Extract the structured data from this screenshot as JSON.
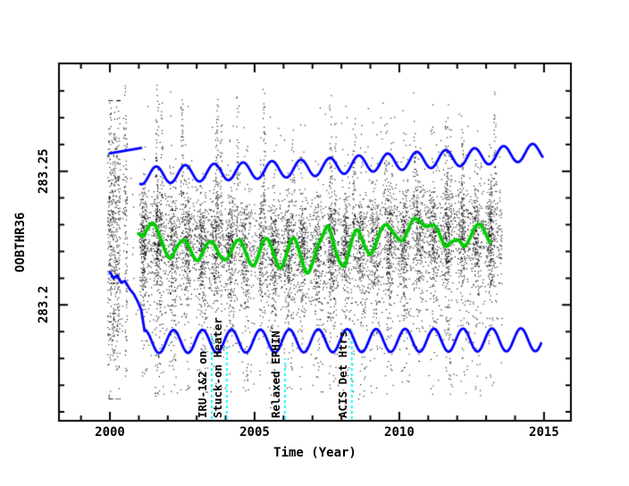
{
  "chart_data": {
    "type": "scatter",
    "title": "",
    "xlabel": "Time (Year)",
    "ylabel": "OOBTHR36",
    "x_range": [
      1998.24,
      2015.93
    ],
    "y_range": [
      283.1567,
      283.2903
    ],
    "grid": false,
    "x_axis": {
      "major_years": [
        2000,
        2005,
        2010,
        2015
      ],
      "major_labels": [
        "2000",
        "2005",
        "2010",
        "2015"
      ],
      "minor_step_years": 1
    },
    "y_axis": {
      "major_values": [
        283.25,
        283.2
      ],
      "major_labels": [
        "283.25",
        "283.2"
      ],
      "minor_step": 0.01
    },
    "colors": {
      "scatter": "#000000",
      "smooth": "#00cc00",
      "envelope": "#0000ff",
      "event_line": "#00ffff",
      "frame": "#000000"
    },
    "series": {
      "smoothed_mean": {
        "name": "smoothed telemetry (green)",
        "color": "#00cc00",
        "points": [
          [
            2000.99,
            283.2267
          ],
          [
            2001.14,
            283.2253
          ],
          [
            2001.3,
            283.2287
          ],
          [
            2001.51,
            283.2317
          ],
          [
            2001.76,
            283.2247
          ],
          [
            2001.94,
            283.219
          ],
          [
            2002.1,
            283.2167
          ],
          [
            2002.25,
            283.2207
          ],
          [
            2002.44,
            283.2237
          ],
          [
            2002.59,
            283.2247
          ],
          [
            2002.78,
            283.2207
          ],
          [
            2002.93,
            283.217
          ],
          [
            2003.06,
            283.2163
          ],
          [
            2003.21,
            283.2197
          ],
          [
            2003.36,
            283.2233
          ],
          [
            2003.55,
            283.224
          ],
          [
            2003.7,
            283.2203
          ],
          [
            2003.89,
            283.217
          ],
          [
            2004.04,
            283.2167
          ],
          [
            2004.2,
            283.2203
          ],
          [
            2004.35,
            283.224
          ],
          [
            2004.51,
            283.2247
          ],
          [
            2004.69,
            283.2197
          ],
          [
            2004.85,
            283.215
          ],
          [
            2005.0,
            283.2143
          ],
          [
            2005.15,
            283.2193
          ],
          [
            2005.31,
            283.2243
          ],
          [
            2005.46,
            283.2253
          ],
          [
            2005.65,
            283.2197
          ],
          [
            2005.8,
            283.2143
          ],
          [
            2005.93,
            283.2133
          ],
          [
            2006.08,
            283.218
          ],
          [
            2006.23,
            283.224
          ],
          [
            2006.39,
            283.2257
          ],
          [
            2006.57,
            283.219
          ],
          [
            2006.73,
            283.213
          ],
          [
            2006.85,
            283.2113
          ],
          [
            2007.01,
            283.2157
          ],
          [
            2007.16,
            283.222
          ],
          [
            2007.31,
            283.2247
          ],
          [
            2007.47,
            283.229
          ],
          [
            2007.56,
            283.23
          ],
          [
            2007.69,
            283.2247
          ],
          [
            2007.87,
            283.2173
          ],
          [
            2008.09,
            283.2133
          ],
          [
            2008.24,
            283.219
          ],
          [
            2008.4,
            283.226
          ],
          [
            2008.55,
            283.229
          ],
          [
            2008.7,
            283.2247
          ],
          [
            2008.86,
            283.2207
          ],
          [
            2009.01,
            283.218
          ],
          [
            2009.17,
            283.2223
          ],
          [
            2009.35,
            283.228
          ],
          [
            2009.54,
            283.2307
          ],
          [
            2009.72,
            283.228
          ],
          [
            2009.91,
            283.2253
          ],
          [
            2010.09,
            283.2233
          ],
          [
            2010.28,
            283.2273
          ],
          [
            2010.49,
            283.233
          ],
          [
            2010.71,
            283.2313
          ],
          [
            2010.9,
            283.229
          ],
          [
            2011.08,
            283.23
          ],
          [
            2011.23,
            283.23
          ],
          [
            2011.39,
            283.2267
          ],
          [
            2011.57,
            283.2213
          ],
          [
            2011.73,
            283.223
          ],
          [
            2011.88,
            283.224
          ],
          [
            2012.01,
            283.2247
          ],
          [
            2012.13,
            283.2233
          ],
          [
            2012.25,
            283.2213
          ],
          [
            2012.44,
            283.2247
          ],
          [
            2012.59,
            283.229
          ],
          [
            2012.78,
            283.2307
          ],
          [
            2012.93,
            283.228
          ],
          [
            2013.12,
            283.2233
          ]
        ]
      },
      "upper_envelope": {
        "name": "upper model envelope (blue)",
        "color": "#0000ff",
        "intro_segment": [
          [
            2000.0,
            283.2567
          ],
          [
            2001.08,
            283.2587
          ]
        ],
        "wave": {
          "start": 2001.05,
          "end": 2014.95,
          "period_years": 1,
          "peak_phase": 0.6,
          "amplitude": 0.0032,
          "mean_knots": [
            [
              2001.05,
              283.2483
            ],
            [
              2003,
              283.2493
            ],
            [
              2005,
              283.2503
            ],
            [
              2007,
              283.2513
            ],
            [
              2009,
              283.253
            ],
            [
              2011,
              283.2543
            ],
            [
              2013,
              283.2557
            ],
            [
              2014.95,
              283.2573
            ]
          ]
        }
      },
      "lower_envelope": {
        "name": "lower model envelope (blue)",
        "color": "#0000ff",
        "intro_segment": [
          [
            2000.0,
            283.2123
          ],
          [
            2000.12,
            283.21
          ],
          [
            2000.25,
            283.211
          ],
          [
            2000.4,
            283.2083
          ],
          [
            2000.52,
            283.209
          ],
          [
            2000.68,
            283.206
          ],
          [
            2000.83,
            283.204
          ],
          [
            2000.96,
            283.2013
          ],
          [
            2001.08,
            283.1983
          ],
          [
            2001.2,
            283.1903
          ]
        ],
        "wave": {
          "start": 2001.2,
          "end": 2014.9,
          "period_years": 1,
          "peak_phase": 0.2,
          "amplitude": 0.0043,
          "mean_knots": [
            [
              2001.2,
              283.1863
            ],
            [
              2014.9,
              283.187
            ]
          ]
        }
      },
      "telemetry_scatter": {
        "name": "OOBTHR36 telemetry (black points)",
        "color": "#000000",
        "x_start": 2000.0,
        "x_end": 2013.55,
        "dense_start": 2001.0,
        "center_knots": [
          [
            2000.2,
            283.2233
          ],
          [
            2001,
            283.2247
          ],
          [
            2003,
            283.222
          ],
          [
            2005,
            283.2207
          ],
          [
            2007,
            283.2197
          ],
          [
            2009,
            283.2233
          ],
          [
            2011,
            283.2263
          ],
          [
            2013.5,
            283.2263
          ]
        ],
        "core_sigma": 0.0093,
        "top_extent": 283.285,
        "bottom_extent": 283.166,
        "spike_years": [
          2000.5,
          2001.62,
          2002.48,
          2003.68,
          2004.4,
          2005.32,
          2006.32,
          2007.62,
          2008.42,
          2009.52,
          2010.52,
          2011.62,
          2012.18,
          2013.3
        ],
        "gap_years": [
          [
            2000.45,
            2000.97
          ],
          [
            2005.02,
            2005.13
          ]
        ],
        "stripes_per_year": 2,
        "seed": 42
      }
    },
    "annotations": [
      {
        "label": "IRU-1&2 on",
        "year": 2003.52,
        "line_top": 283.1893,
        "line_color": "#00ffff"
      },
      {
        "label": "Stuck-on Heater",
        "year": 2004.04,
        "line_top": 283.1853,
        "line_color": "#00ffff"
      },
      {
        "label": "Relaxed EPHIN",
        "year": 2006.05,
        "line_top": 283.18,
        "line_color": "#00ffff"
      },
      {
        "label": "ACIS Det Htrs",
        "year": 2008.36,
        "line_top": 283.1913,
        "line_color": "#00ffff"
      }
    ]
  }
}
